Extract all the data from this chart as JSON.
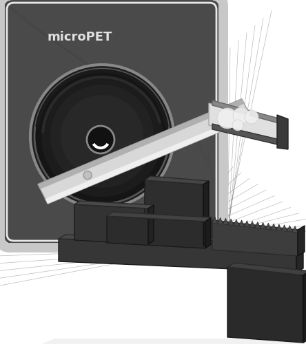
{
  "background_color": "#ffffff",
  "figure_width": 4.44,
  "figure_height": 5.0,
  "dpi": 100,
  "label_text": "microPET",
  "label_color": "#e0e0e0",
  "scanner_dark": "#4a4a4a",
  "scanner_mid": "#5a5a5a",
  "scanner_light": "#888888",
  "frame_color": "#cccccc",
  "bore_dark": "#1a1a1a",
  "bore_ring": "#666666",
  "tube_body": "#d8d8d8",
  "tube_light": "#f0f0f0",
  "tube_shadow": "#aaaaaa",
  "bed_dark": "#252525",
  "bed_mid": "#363636",
  "bed_light": "#484848",
  "teeth_color": "#3a3a3a"
}
